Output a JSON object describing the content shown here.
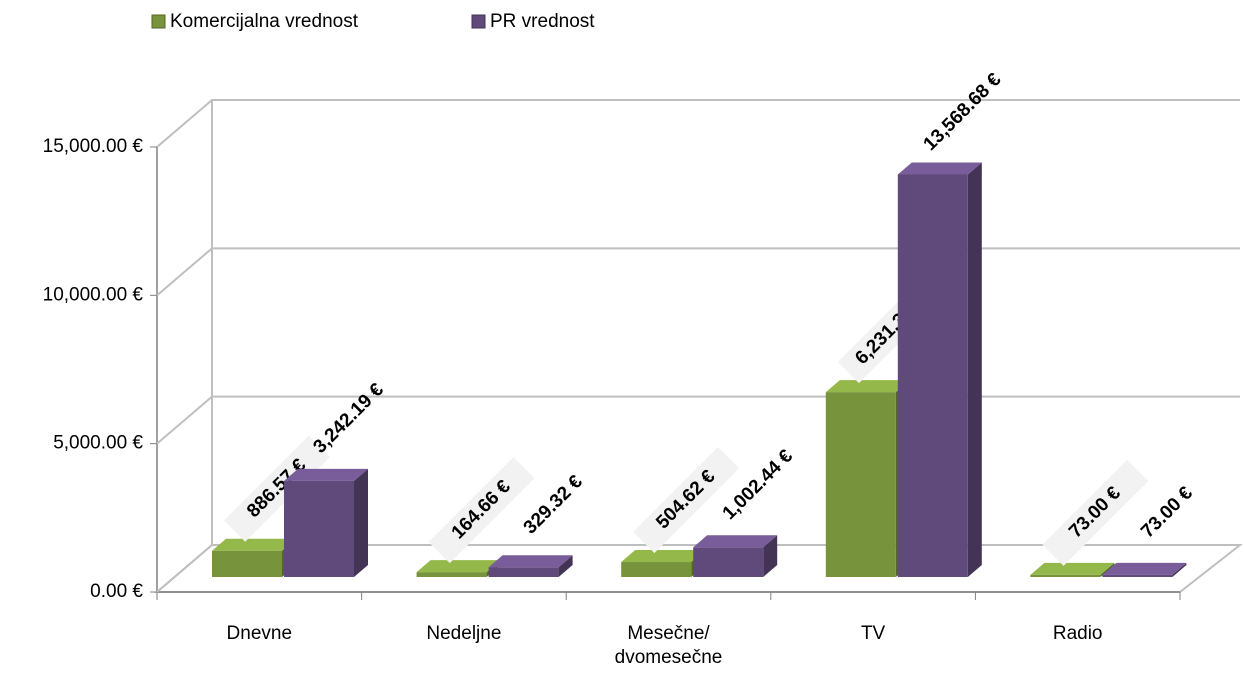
{
  "chart_data": {
    "type": "bar3d",
    "categories": [
      "Dnevne",
      "Nedeljne",
      "Mesečne/\ndvomesečne",
      "TV",
      "Radio"
    ],
    "series": [
      {
        "name": "Komercijalna vrednost",
        "color": "#77933c",
        "values": [
          886.57,
          164.66,
          504.62,
          6231.31,
          73.0
        ],
        "value_labels": [
          "886.57 €",
          "164.66 €",
          "504.62 €",
          "6,231.31 €",
          "73.00 €"
        ]
      },
      {
        "name": "PR vrednost",
        "color": "#604a7b",
        "values": [
          3242.19,
          329.32,
          1002.44,
          13568.68,
          73.0
        ],
        "value_labels": [
          "3,242.19 €",
          "329.32 €",
          "1,002.44 €",
          "13,568.68 €",
          "73.00 €"
        ]
      }
    ],
    "ylim": [
      0,
      15000
    ],
    "yticks": [
      {
        "value": 0,
        "label": "0.00 €"
      },
      {
        "value": 5000,
        "label": "5,000.00 €"
      },
      {
        "value": 10000,
        "label": "10,000.00 €"
      },
      {
        "value": 15000,
        "label": "15,000.00 €"
      }
    ],
    "grid": true,
    "legend": "top-left"
  }
}
